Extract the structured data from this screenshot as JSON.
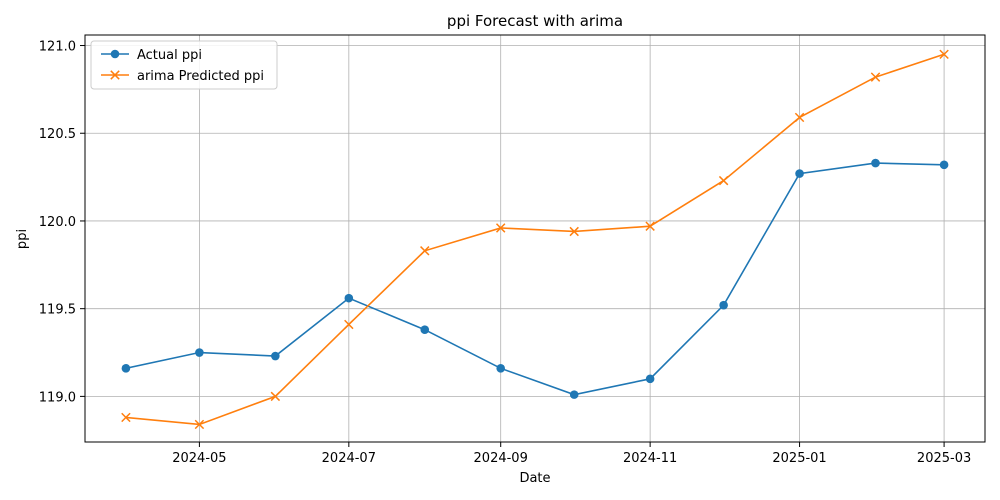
{
  "chart_data": {
    "type": "line",
    "title": "ppi Forecast with arima",
    "xlabel": "Date",
    "ylabel": "ppi",
    "grid": true,
    "legend_position": "top-left",
    "x": [
      "2024-04-01",
      "2024-05-01",
      "2024-06-01",
      "2024-07-01",
      "2024-08-01",
      "2024-09-01",
      "2024-10-01",
      "2024-11-01",
      "2024-12-01",
      "2025-01-01",
      "2025-02-01",
      "2025-03-01"
    ],
    "x_ticks": [
      "2024-05",
      "2024-07",
      "2024-09",
      "2024-11",
      "2025-01",
      "2025-03"
    ],
    "y_ticks": [
      "119.0",
      "119.5",
      "120.0",
      "120.5",
      "121.0"
    ],
    "ylim": [
      118.74,
      121.06
    ],
    "series": [
      {
        "name": "Actual ppi",
        "color": "#1f77b4",
        "marker": "circle",
        "values": [
          119.16,
          119.25,
          119.23,
          119.56,
          119.38,
          119.16,
          119.01,
          119.1,
          119.52,
          120.27,
          120.33,
          120.32
        ]
      },
      {
        "name": "arima Predicted ppi",
        "color": "#ff7f0e",
        "marker": "x",
        "values": [
          118.88,
          118.84,
          119.0,
          119.41,
          119.83,
          119.96,
          119.94,
          119.97,
          120.23,
          120.59,
          120.82,
          120.95
        ]
      }
    ]
  }
}
